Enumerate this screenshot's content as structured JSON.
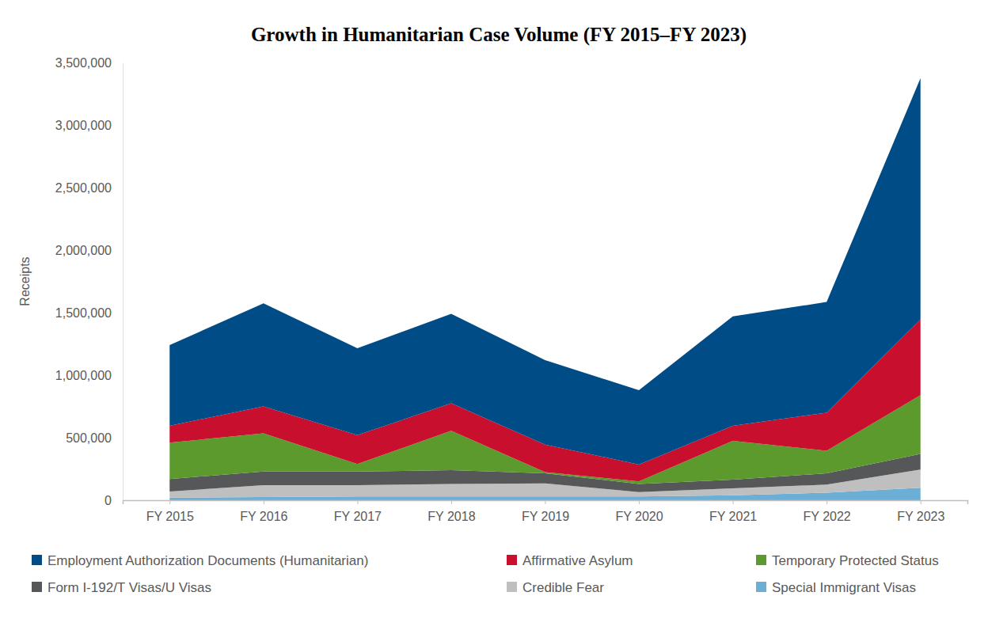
{
  "chart_data": {
    "type": "area",
    "stacked": true,
    "title": "Growth in Humanitarian Case Volume (FY 2015–FY 2023)",
    "y_label": "Receipts",
    "categories": [
      "FY 2015",
      "FY 2016",
      "FY 2017",
      "FY 2018",
      "FY 2019",
      "FY 2020",
      "FY 2021",
      "FY 2022",
      "FY 2023"
    ],
    "series": [
      {
        "name": "Employment Authorization Documents (Humanitarian)",
        "color": "#004c87",
        "values": [
          645000,
          825000,
          695000,
          715000,
          675000,
          595000,
          875000,
          885000,
          1930000
        ]
      },
      {
        "name": "Affirmative Asylum",
        "color": "#c8102e",
        "values": [
          135000,
          215000,
          230000,
          220000,
          220000,
          135000,
          120000,
          305000,
          605000
        ]
      },
      {
        "name": "Temporary Protected Status",
        "color": "#5c9a2e",
        "values": [
          290000,
          305000,
          60000,
          315000,
          10000,
          20000,
          310000,
          180000,
          470000
        ]
      },
      {
        "name": "Form I-192/T Visas/U Visas",
        "color": "#555759",
        "values": [
          100000,
          110000,
          110000,
          110000,
          80000,
          65000,
          70000,
          90000,
          125000
        ]
      },
      {
        "name": "Credible Fear",
        "color": "#bfbfbf",
        "values": [
          50000,
          95000,
          90000,
          100000,
          105000,
          35000,
          55000,
          65000,
          145000
        ]
      },
      {
        "name": "Special Immigrant Visas",
        "color": "#6bafd6",
        "values": [
          20000,
          25000,
          30000,
          30000,
          30000,
          30000,
          40000,
          60000,
          100000
        ]
      }
    ],
    "ylim": [
      0,
      3500000
    ],
    "yticks": [
      0,
      {
        "value": 500000,
        "label": "500,000"
      },
      {
        "value": 1000000,
        "label": "1,000,000"
      },
      {
        "value": 1500000,
        "label": "1,500,000"
      },
      {
        "value": 2000000,
        "label": "2,000,000"
      },
      {
        "value": 2500000,
        "label": "2,500,000"
      },
      {
        "value": 3000000,
        "label": "3,000,000"
      },
      {
        "value": 3500000,
        "label": "3,500,000"
      }
    ],
    "grid": false,
    "legend": "bottom"
  }
}
